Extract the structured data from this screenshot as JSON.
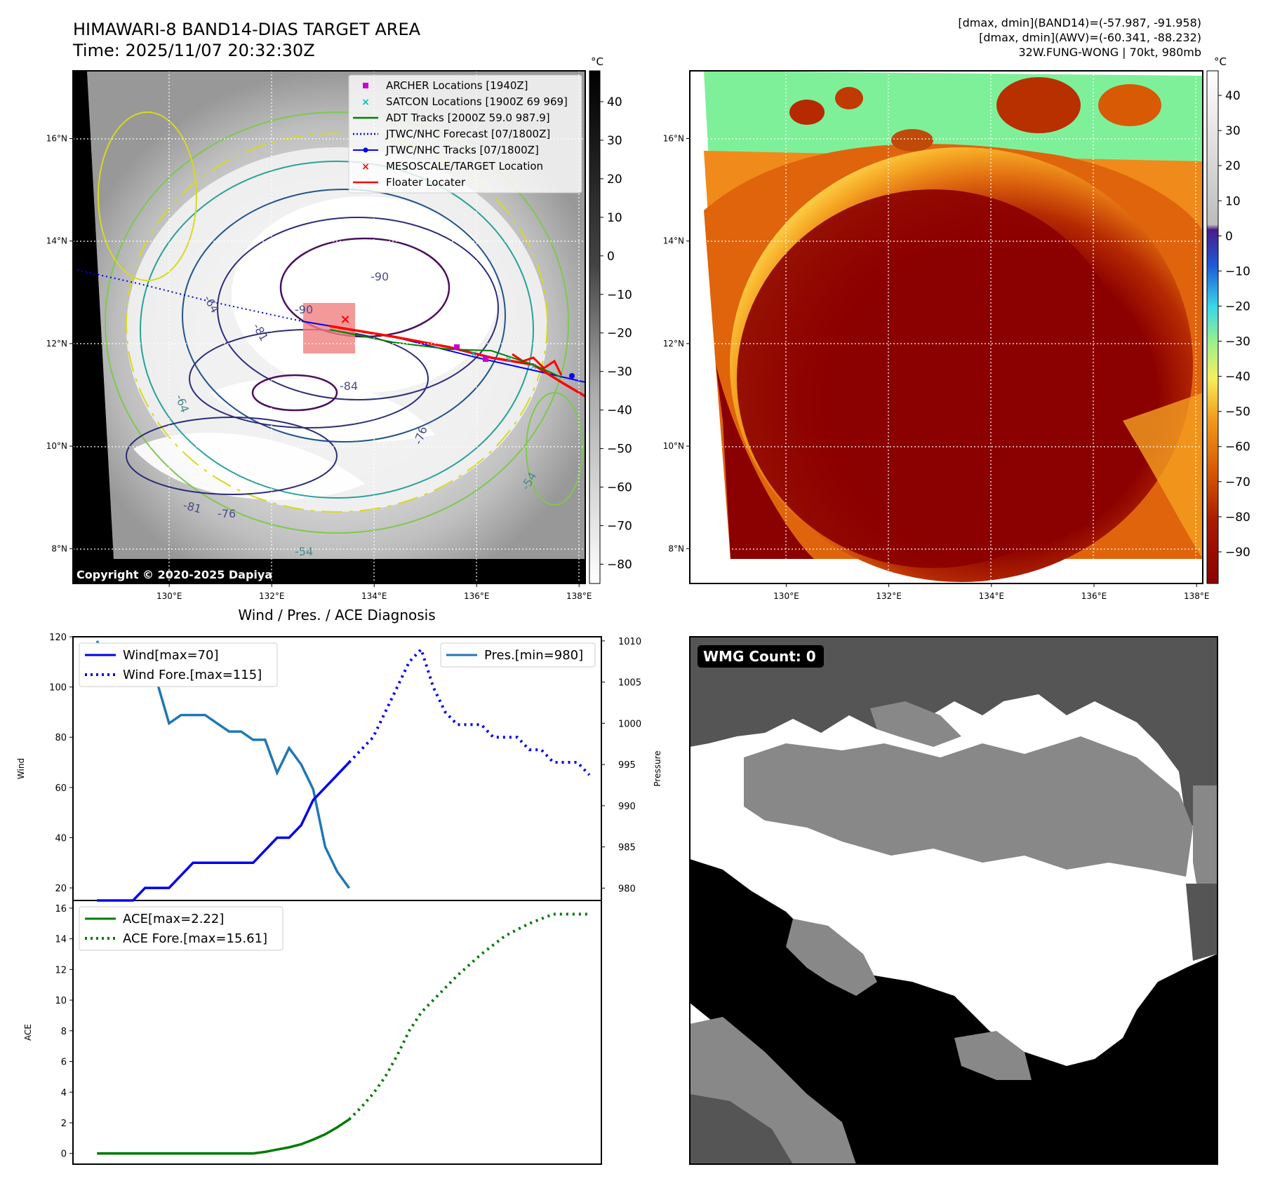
{
  "header": {
    "title_line1": "HIMAWARI-8 BAND14-DIAS TARGET AREA",
    "title_line2": "Time: 2025/11/07 20:32:30Z",
    "stats_line1": "[dmax, dmin](BAND14)=(-57.987, -91.958)",
    "stats_line2": "[dmax, dmin](AWV)=(-60.341, -88.232)",
    "stats_line3": "32W.FUNG-WONG | 70kt, 980mb"
  },
  "colors": {
    "wind": "#0000ee",
    "pressure": "#1f77b4",
    "ace": "#007a00",
    "jtwc_track": "#0000ff",
    "floater": "#ff0000",
    "adt": "#008000",
    "archer": "#cc00cc",
    "satcon": "#00bfbf",
    "target_box": "#f08080"
  },
  "ir_panel": {
    "cbar_unit": "°C",
    "cbar_ticks": [
      40,
      30,
      20,
      10,
      0,
      -10,
      -20,
      -30,
      -40,
      -50,
      -60,
      -70,
      -80
    ],
    "lat_ticks": [
      "16°N",
      "14°N",
      "12°N",
      "10°N",
      "8°N"
    ],
    "lon_ticks": [
      "130°E",
      "132°E",
      "134°E",
      "136°E",
      "138°E"
    ],
    "copyright": "Copyright © 2020-2025 Dapiya",
    "contour_labels": [
      "-90",
      "-90",
      "-81",
      "-84",
      "-76",
      "-64",
      "-81",
      "-76",
      "-54",
      "-64",
      "-54"
    ],
    "legend": [
      {
        "label": "ARCHER Locations [1940Z]",
        "kind": "square",
        "color": "#cc00cc"
      },
      {
        "label": "SATCON Locations [1900Z 69 969]",
        "kind": "x",
        "color": "#00bfbf"
      },
      {
        "label": "ADT Tracks [2000Z 59.0 987.9]",
        "kind": "line",
        "color": "#008000"
      },
      {
        "label": "JTWC/NHC Forecast [07/1800Z]",
        "kind": "dotted",
        "color": "#0000ff"
      },
      {
        "label": "JTWC/NHC Tracks [07/1800Z]",
        "kind": "linedot",
        "color": "#0000ff"
      },
      {
        "label": "MESOSCALE/TARGET Location",
        "kind": "x",
        "color": "#ff0000"
      },
      {
        "label": "Floater Locater",
        "kind": "line",
        "color": "#ff0000"
      }
    ]
  },
  "awv_panel": {
    "cbar_unit": "°C",
    "cbar_ticks": [
      40,
      30,
      20,
      10,
      0,
      -10,
      -20,
      -30,
      -40,
      -50,
      -60,
      -70,
      -80,
      -90
    ],
    "lat_ticks": [
      "16°N",
      "14°N",
      "12°N",
      "10°N",
      "8°N"
    ],
    "lon_ticks": [
      "130°E",
      "132°E",
      "134°E",
      "136°E",
      "138°E"
    ]
  },
  "diagnosis": {
    "title": "Wind / Pres. / ACE Diagnosis",
    "wind_ylabel": "Wind",
    "pres_ylabel": "Pressure",
    "ace_ylabel": "ACE",
    "wind_legend": [
      "Wind[max=70]",
      "Wind Fore.[max=115]"
    ],
    "pres_legend": [
      "Pres.[min=980]"
    ],
    "ace_legend": [
      "ACE[max=2.22]",
      "ACE Fore.[max=15.61]"
    ],
    "wind_ticks": [
      20,
      40,
      60,
      80,
      100,
      120
    ],
    "pres_ticks": [
      980,
      985,
      990,
      995,
      1000,
      1005,
      1010
    ],
    "ace_ticks": [
      0,
      2,
      4,
      6,
      8,
      10,
      12,
      14,
      16
    ]
  },
  "chart_data": [
    {
      "type": "line",
      "title": "Wind / Pres. / ACE Diagnosis",
      "ylabel": "Wind",
      "ylim": [
        15,
        120
      ],
      "xlim": [
        -2,
        42
      ],
      "series": [
        {
          "name": "Wind[max=70]",
          "style": "solid",
          "x": [
            0,
            1,
            2,
            3,
            4,
            5,
            6,
            7,
            8,
            9,
            10,
            11,
            12,
            13,
            14,
            15,
            16,
            17,
            18,
            19,
            20,
            21
          ],
          "values": [
            15,
            15,
            15,
            15,
            20,
            20,
            20,
            25,
            30,
            30,
            30,
            30,
            30,
            30,
            35,
            40,
            40,
            45,
            55,
            60,
            65,
            70
          ]
        },
        {
          "name": "Wind Fore.[max=115]",
          "style": "dotted",
          "x": [
            21,
            22,
            23,
            24,
            25,
            26,
            27,
            28,
            29,
            30,
            31,
            32,
            33,
            34,
            35,
            36,
            37,
            38,
            39,
            40,
            41
          ],
          "values": [
            70,
            75,
            80,
            90,
            100,
            110,
            115,
            100,
            90,
            85,
            85,
            85,
            80,
            80,
            80,
            75,
            75,
            70,
            70,
            70,
            65
          ]
        }
      ]
    },
    {
      "type": "line",
      "ylabel": "Pressure",
      "ylim": [
        978.5,
        1010.5
      ],
      "xlim": [
        -2,
        42
      ],
      "series": [
        {
          "name": "Pres.[min=980]",
          "style": "solid",
          "x": [
            0,
            1,
            2,
            3,
            4,
            5,
            6,
            7,
            8,
            9,
            10,
            11,
            12,
            13,
            14,
            15,
            16,
            17,
            18,
            19,
            20,
            21
          ],
          "values": [
            1010,
            1007,
            1007,
            1007,
            1006,
            1005,
            1000,
            1001,
            1001,
            1001,
            1000,
            999,
            999,
            998,
            998,
            994,
            997,
            995,
            992,
            985,
            982,
            980
          ]
        }
      ]
    },
    {
      "type": "line",
      "ylabel": "ACE",
      "ylim": [
        -0.7,
        16.5
      ],
      "xlim": [
        -2,
        42
      ],
      "series": [
        {
          "name": "ACE[max=2.22]",
          "style": "solid",
          "x": [
            0,
            1,
            2,
            3,
            4,
            5,
            6,
            7,
            8,
            9,
            10,
            11,
            12,
            13,
            14,
            15,
            16,
            17,
            18,
            19,
            20,
            21
          ],
          "values": [
            0,
            0,
            0,
            0,
            0,
            0,
            0,
            0,
            0,
            0,
            0,
            0,
            0,
            0,
            0.1,
            0.25,
            0.4,
            0.6,
            0.9,
            1.25,
            1.7,
            2.22
          ]
        },
        {
          "name": "ACE Fore.[max=15.61]",
          "style": "dotted",
          "x": [
            21,
            22,
            23,
            24,
            25,
            26,
            27,
            28,
            29,
            30,
            31,
            32,
            33,
            34,
            35,
            36,
            37,
            38,
            39,
            40,
            41
          ],
          "values": [
            2.22,
            3.0,
            3.9,
            5.0,
            6.4,
            8.0,
            9.2,
            10.0,
            10.8,
            11.6,
            12.3,
            13.0,
            13.6,
            14.2,
            14.6,
            15.0,
            15.3,
            15.61,
            15.61,
            15.61,
            15.61
          ]
        }
      ]
    }
  ],
  "wmg_panel": {
    "badge": "WMG Count: 0"
  }
}
